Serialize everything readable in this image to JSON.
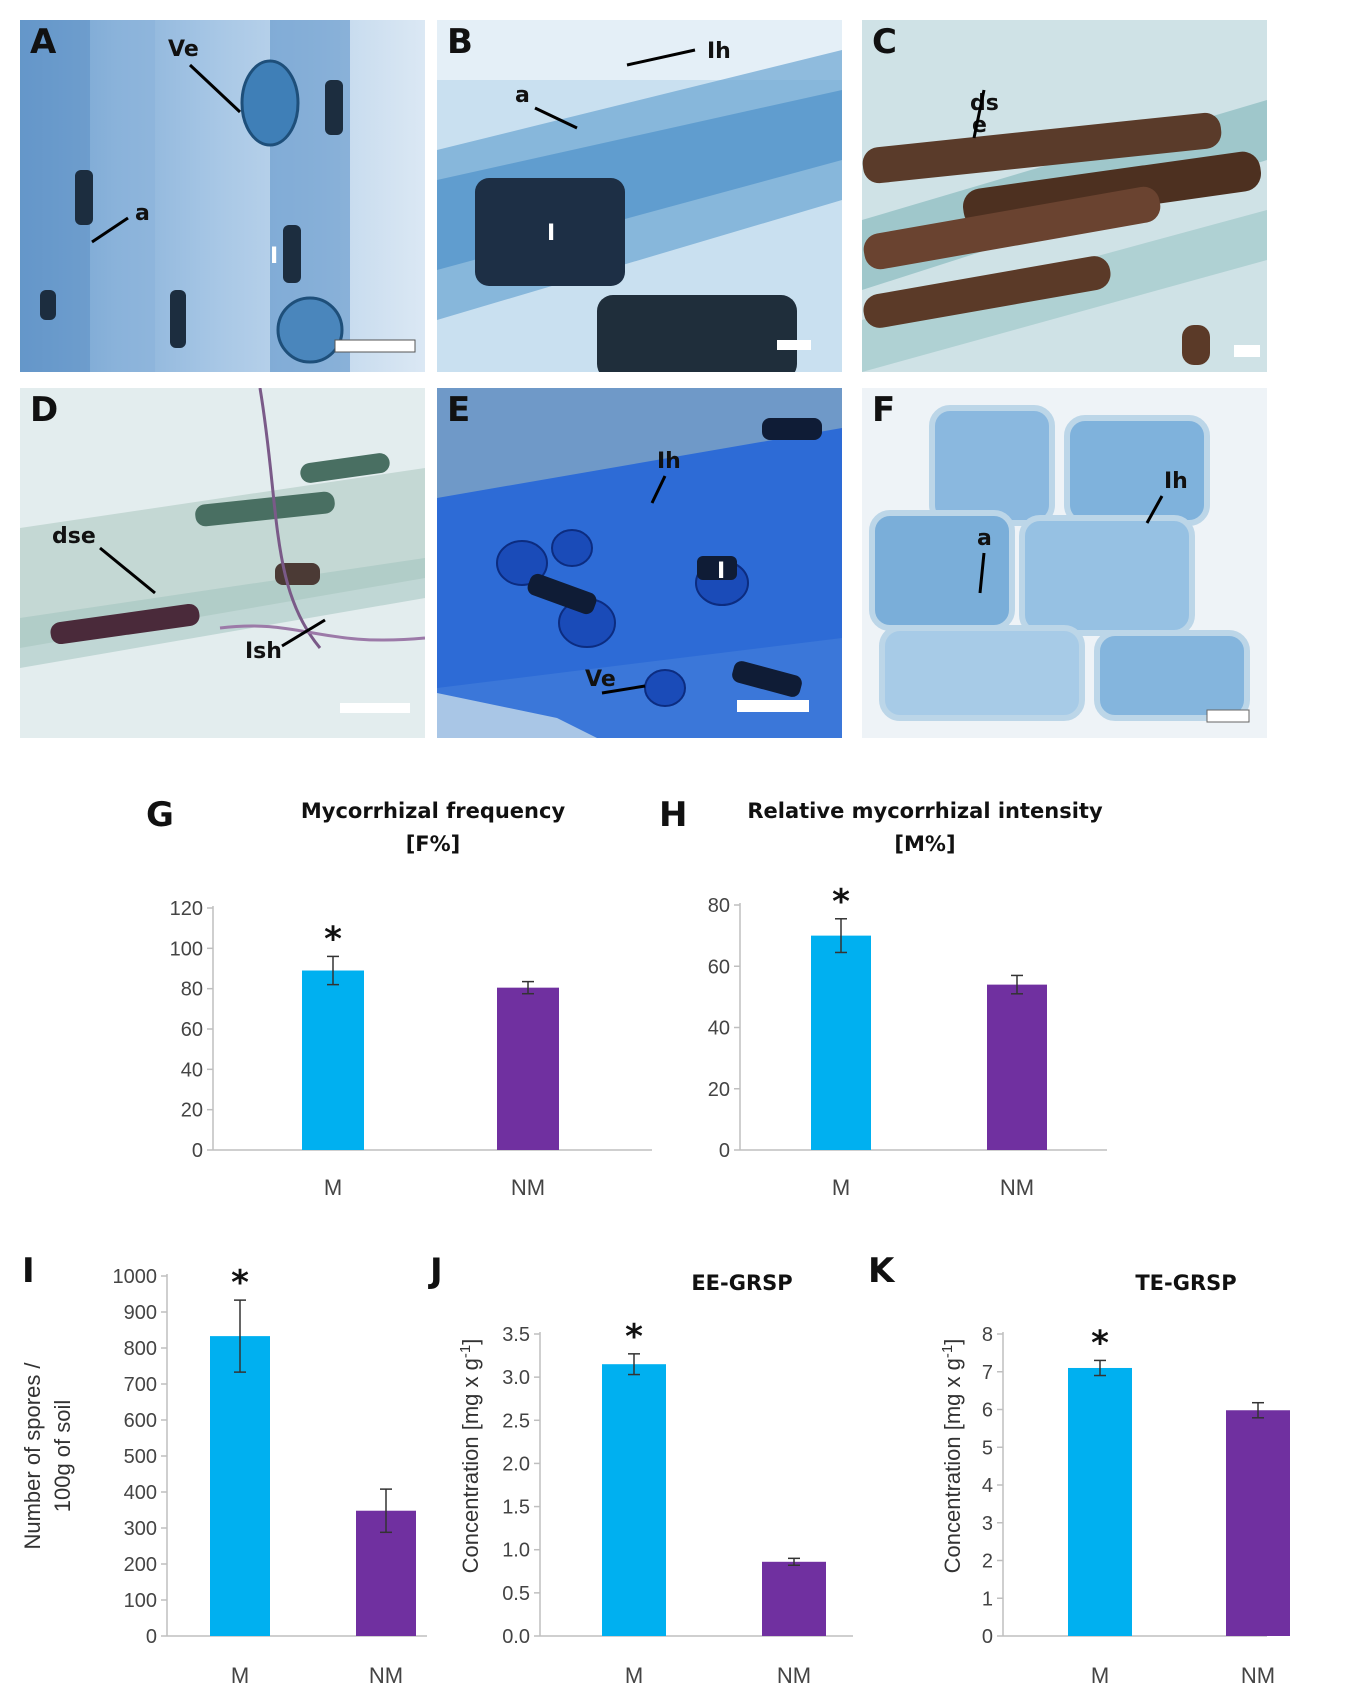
{
  "panels": {
    "A": {
      "letter": "A",
      "labels": {
        "ve": "Ve",
        "a": "a",
        "i": "I"
      }
    },
    "B": {
      "letter": "B",
      "labels": {
        "ih": "Ih",
        "a": "a",
        "i": "I"
      }
    },
    "C": {
      "letter": "C",
      "labels": {
        "dse1": "ds",
        "dse2": "e"
      }
    },
    "D": {
      "letter": "D",
      "labels": {
        "dse": "dse",
        "ish": "Ish"
      }
    },
    "E": {
      "letter": "E",
      "labels": {
        "ih": "Ih",
        "i": "I",
        "ve": "Ve"
      }
    },
    "F": {
      "letter": "F",
      "labels": {
        "ih": "Ih",
        "a": "a"
      }
    }
  },
  "colors": {
    "M": "#00b0f0",
    "NM": "#7030a0",
    "axis": "#bfbfbf",
    "errorbar": "#333333"
  },
  "chart_data": [
    {
      "id": "G",
      "letter": "G",
      "type": "bar",
      "title": "Mycorrhizal frequency",
      "title2": "[F%]",
      "ylabel": "",
      "categories": [
        "M",
        "NM"
      ],
      "values": [
        89,
        80.5
      ],
      "errors": [
        7,
        3
      ],
      "ylim": [
        0,
        120
      ],
      "yticks": [
        "0",
        "20",
        "40",
        "60",
        "80",
        "100",
        "120"
      ],
      "significance": [
        "*",
        ""
      ],
      "grid": false
    },
    {
      "id": "H",
      "letter": "H",
      "type": "bar",
      "title": "Relative mycorrhizal intensity",
      "title2": "[M%]",
      "ylabel": "",
      "categories": [
        "M",
        "NM"
      ],
      "values": [
        70,
        54
      ],
      "errors": [
        5.5,
        3
      ],
      "ylim": [
        0,
        80
      ],
      "yticks": [
        "0",
        "20",
        "40",
        "60",
        "80"
      ],
      "significance": [
        "*",
        ""
      ],
      "grid": false
    },
    {
      "id": "I",
      "letter": "I",
      "type": "bar",
      "title": "",
      "title2": "",
      "ylabel": "Number of spores /",
      "ylabel2": "100g of soil",
      "categories": [
        "M",
        "NM"
      ],
      "values": [
        833,
        348
      ],
      "errors": [
        100,
        60
      ],
      "ylim": [
        0,
        1000
      ],
      "yticks": [
        "0",
        "100",
        "200",
        "300",
        "400",
        "500",
        "600",
        "700",
        "800",
        "900",
        "1000"
      ],
      "significance": [
        "*",
        ""
      ],
      "grid": false
    },
    {
      "id": "J",
      "letter": "J",
      "type": "bar",
      "title": "EE-GRSP",
      "title2": "",
      "ylabel": "Concentration [mg x g-1]",
      "categories": [
        "M",
        "NM"
      ],
      "values": [
        3.15,
        0.86
      ],
      "errors": [
        0.12,
        0.04
      ],
      "ylim": [
        0,
        3.5
      ],
      "yticks": [
        "0.0",
        "0.5",
        "1.0",
        "1.5",
        "2.0",
        "2.5",
        "3.0",
        "3.5"
      ],
      "significance": [
        "*",
        ""
      ],
      "grid": false
    },
    {
      "id": "K",
      "letter": "K",
      "type": "bar",
      "title": "TE-GRSP",
      "title2": "",
      "ylabel": "Concentration [mg x g-1]",
      "categories": [
        "M",
        "NM"
      ],
      "values": [
        7.1,
        5.98
      ],
      "errors": [
        0.2,
        0.2
      ],
      "ylim": [
        0,
        8
      ],
      "yticks": [
        "0",
        "1",
        "2",
        "3",
        "4",
        "5",
        "6",
        "7",
        "8"
      ],
      "significance": [
        "*",
        ""
      ],
      "grid": false
    }
  ]
}
